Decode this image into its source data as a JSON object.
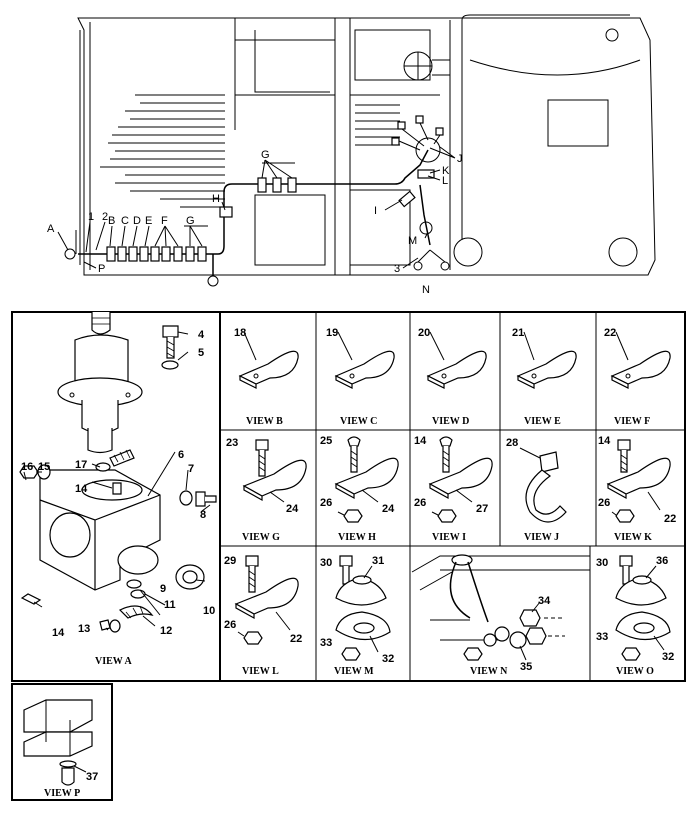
{
  "vehicle_labels": {
    "A": "A",
    "n1": "1",
    "n2": "2",
    "B": "B",
    "C": "C",
    "D": "D",
    "E": "E",
    "F": "F",
    "G_left": "G",
    "G_top": "G",
    "H": "H",
    "I": "I",
    "J": "J",
    "K": "K",
    "L": "L",
    "M": "M",
    "n3": "3",
    "N": "N",
    "P": "P"
  },
  "views": {
    "A": {
      "caption": "VIEW A",
      "callouts": [
        "4",
        "5",
        "6",
        "7",
        "8",
        "9",
        "10",
        "11",
        "12",
        "13",
        "14",
        "14",
        "15",
        "16",
        "17"
      ]
    },
    "B": {
      "caption": "VIEW B",
      "callouts": [
        "18"
      ]
    },
    "C": {
      "caption": "VIEW C",
      "callouts": [
        "19"
      ]
    },
    "D": {
      "caption": "VIEW D",
      "callouts": [
        "20"
      ]
    },
    "E": {
      "caption": "VIEW E",
      "callouts": [
        "21"
      ]
    },
    "F": {
      "caption": "VIEW F",
      "callouts": [
        "22"
      ]
    },
    "G": {
      "caption": "VIEW G",
      "callouts": [
        "23",
        "24"
      ]
    },
    "H": {
      "caption": "VIEW H",
      "callouts": [
        "25",
        "26",
        "24"
      ]
    },
    "I": {
      "caption": "VIEW I",
      "callouts": [
        "14",
        "26",
        "27"
      ]
    },
    "J": {
      "caption": "VIEW J",
      "callouts": [
        "28"
      ]
    },
    "K": {
      "caption": "VIEW K",
      "callouts": [
        "14",
        "26",
        "22"
      ]
    },
    "L": {
      "caption": "VIEW L",
      "callouts": [
        "29",
        "26",
        "22"
      ]
    },
    "M": {
      "caption": "VIEW M",
      "callouts": [
        "30",
        "31",
        "33",
        "32"
      ]
    },
    "N": {
      "caption": "VIEW N",
      "callouts": [
        "34",
        "35"
      ]
    },
    "O": {
      "caption": "VIEW O",
      "callouts": [
        "30",
        "36",
        "33",
        "32"
      ]
    },
    "P": {
      "caption": "VIEW P",
      "callouts": [
        "37"
      ]
    }
  }
}
